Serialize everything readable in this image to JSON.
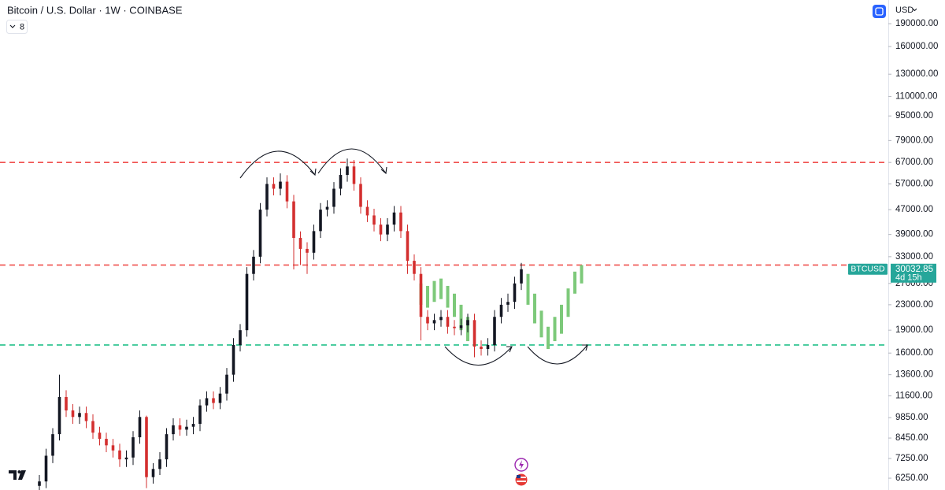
{
  "chart_data": {
    "type": "candlestick",
    "title": "Bitcoin / U.S. Dollar · 1W · COINBASE",
    "indicator_count": "8",
    "currency": "USD",
    "symbol": "BTCUSD",
    "last_price": 30032.85,
    "countdown": "4d 15h",
    "log_scale": true,
    "up_color": "#131722",
    "down_color": "#d32f2f",
    "last_color": "#26a69a",
    "ylim": [
      5720,
      227000
    ],
    "yticks": [
      {
        "value": 190000,
        "label": "190000.00"
      },
      {
        "value": 160000,
        "label": "160000.00"
      },
      {
        "value": 130000,
        "label": "130000.00"
      },
      {
        "value": 110000,
        "label": "110000.00"
      },
      {
        "value": 95000,
        "label": "95000.00"
      },
      {
        "value": 79000,
        "label": "79000.00"
      },
      {
        "value": 67000,
        "label": "67000.00"
      },
      {
        "value": 57000,
        "label": "57000.00"
      },
      {
        "value": 47000,
        "label": "47000.00"
      },
      {
        "value": 39000,
        "label": "39000.00"
      },
      {
        "value": 33000,
        "label": "33000.00"
      },
      {
        "value": 27000,
        "label": "27000.00"
      },
      {
        "value": 23000,
        "label": "23000.00"
      },
      {
        "value": 19000,
        "label": "19000.00"
      },
      {
        "value": 16000,
        "label": "16000.00"
      },
      {
        "value": 13600,
        "label": "13600.00"
      },
      {
        "value": 11600,
        "label": "11600.00"
      },
      {
        "value": 9850,
        "label": "9850.00"
      },
      {
        "value": 8450,
        "label": "8450.00"
      },
      {
        "value": 7250,
        "label": "7250.00"
      },
      {
        "value": 6250,
        "label": "6250.00"
      }
    ],
    "levels": [
      {
        "value": 67000,
        "color": "#f0524f"
      },
      {
        "value": 31000,
        "color": "#f0524f"
      },
      {
        "value": 17000,
        "color": "#22c18a"
      }
    ],
    "open": [
      5900,
      6100,
      7400,
      8700,
      11500,
      10400,
      9900,
      10200,
      9600,
      8800,
      8400,
      8000,
      7700,
      7200,
      7300,
      8500,
      9900,
      6300,
      6700,
      7200,
      8700,
      9300,
      9000,
      9200,
      9400,
      10800,
      11400,
      11000,
      11800,
      13600,
      17000,
      19000,
      29000,
      33000,
      47000,
      57000,
      55000,
      58000,
      50000,
      38000,
      35000,
      34000,
      40000,
      47000,
      48000,
      55000,
      61000,
      65000,
      57000,
      48000,
      45000,
      42000,
      39000,
      42000,
      46000,
      40000,
      32000,
      29000,
      21000,
      20000,
      20500,
      21000,
      19500,
      19300,
      19700,
      20500,
      16800,
      16500,
      17000,
      21000,
      23000,
      23500,
      27000,
      null,
      null,
      null,
      null,
      null,
      null,
      null,
      null,
      null
    ],
    "high": [
      6400,
      7800,
      9100,
      13600,
      12100,
      10900,
      10700,
      10700,
      10100,
      9200,
      8800,
      8400,
      8100,
      7700,
      8900,
      10400,
      10000,
      7000,
      7600,
      9100,
      9800,
      9800,
      9700,
      9900,
      11300,
      12000,
      12000,
      12400,
      14300,
      17900,
      19900,
      30500,
      34700,
      49400,
      59900,
      59900,
      61700,
      60900,
      52500,
      39900,
      36800,
      42000,
      49400,
      50400,
      57800,
      64100,
      69000,
      68300,
      59900,
      50400,
      47300,
      44100,
      44100,
      48300,
      48300,
      42000,
      33600,
      30500,
      22100,
      21500,
      22100,
      22100,
      20500,
      20700,
      21500,
      21500,
      17600,
      17900,
      22100,
      24200,
      25000,
      28400,
      31500,
      null,
      null,
      null,
      null,
      null,
      null,
      null,
      null,
      null
    ],
    "low": [
      5600,
      5800,
      7000,
      8300,
      9900,
      9400,
      9400,
      9100,
      8400,
      8000,
      7600,
      7300,
      6800,
      6800,
      6900,
      8100,
      5800,
      6000,
      6400,
      6800,
      8300,
      8600,
      8600,
      8700,
      8900,
      10300,
      10500,
      10500,
      11200,
      12900,
      16200,
      18100,
      27600,
      31400,
      44700,
      52300,
      52300,
      47500,
      30000,
      31000,
      29000,
      32300,
      38000,
      44700,
      45600,
      52300,
      58000,
      54200,
      45600,
      42800,
      39900,
      37100,
      37100,
      39900,
      38000,
      29000,
      27600,
      17600,
      19000,
      19000,
      19500,
      18500,
      18300,
      18300,
      18700,
      15500,
      15700,
      15700,
      16200,
      20000,
      21800,
      22300,
      25700,
      null,
      null,
      null,
      null,
      null,
      null,
      null,
      null,
      null
    ],
    "close": [
      6100,
      7400,
      8700,
      11500,
      10400,
      9900,
      10200,
      9600,
      8800,
      8400,
      8000,
      7700,
      7200,
      7300,
      8500,
      9900,
      6300,
      6700,
      7200,
      8700,
      9300,
      9000,
      9200,
      9400,
      10800,
      11400,
      11000,
      11800,
      13600,
      17000,
      19000,
      29000,
      33000,
      47000,
      57000,
      55000,
      58000,
      50000,
      38000,
      35000,
      34000,
      40000,
      47000,
      48000,
      55000,
      61000,
      65000,
      57000,
      48000,
      45000,
      42000,
      39000,
      42000,
      46000,
      40000,
      32000,
      29000,
      21000,
      20000,
      20500,
      21000,
      19500,
      19300,
      19700,
      20500,
      16800,
      16500,
      17000,
      21000,
      23000,
      23500,
      27000,
      30032.85,
      null,
      null,
      null,
      null,
      null,
      null,
      null,
      null,
      null
    ],
    "projection": {
      "color": "#7dc97a",
      "high": [
        null,
        null,
        null,
        null,
        null,
        null,
        null,
        null,
        null,
        null,
        null,
        null,
        null,
        null,
        null,
        null,
        null,
        null,
        null,
        null,
        null,
        null,
        null,
        null,
        null,
        null,
        null,
        null,
        null,
        null,
        null,
        null,
        null,
        null,
        null,
        null,
        null,
        null,
        null,
        null,
        null,
        null,
        null,
        null,
        null,
        null,
        null,
        null,
        null,
        null,
        null,
        null,
        null,
        null,
        null,
        null,
        null,
        27000,
        26500,
        27500,
        28000,
        26500,
        25000,
        23000,
        21000,
        null,
        null,
        null,
        null,
        null,
        null,
        null,
        null,
        29000,
        25000,
        22000,
        19500,
        21000,
        23000,
        26000,
        29500,
        31000
      ],
      "low": [
        null,
        null,
        null,
        null,
        null,
        null,
        null,
        null,
        null,
        null,
        null,
        null,
        null,
        null,
        null,
        null,
        null,
        null,
        null,
        null,
        null,
        null,
        null,
        null,
        null,
        null,
        null,
        null,
        null,
        null,
        null,
        null,
        null,
        null,
        null,
        null,
        null,
        null,
        null,
        null,
        null,
        null,
        null,
        null,
        null,
        null,
        null,
        null,
        null,
        null,
        null,
        null,
        null,
        null,
        null,
        null,
        null,
        23000,
        22500,
        23500,
        24000,
        22500,
        21000,
        19000,
        17500,
        null,
        null,
        null,
        null,
        null,
        null,
        null,
        null,
        23000,
        20000,
        18000,
        16500,
        17500,
        18500,
        21000,
        25000,
        27000
      ]
    }
  }
}
